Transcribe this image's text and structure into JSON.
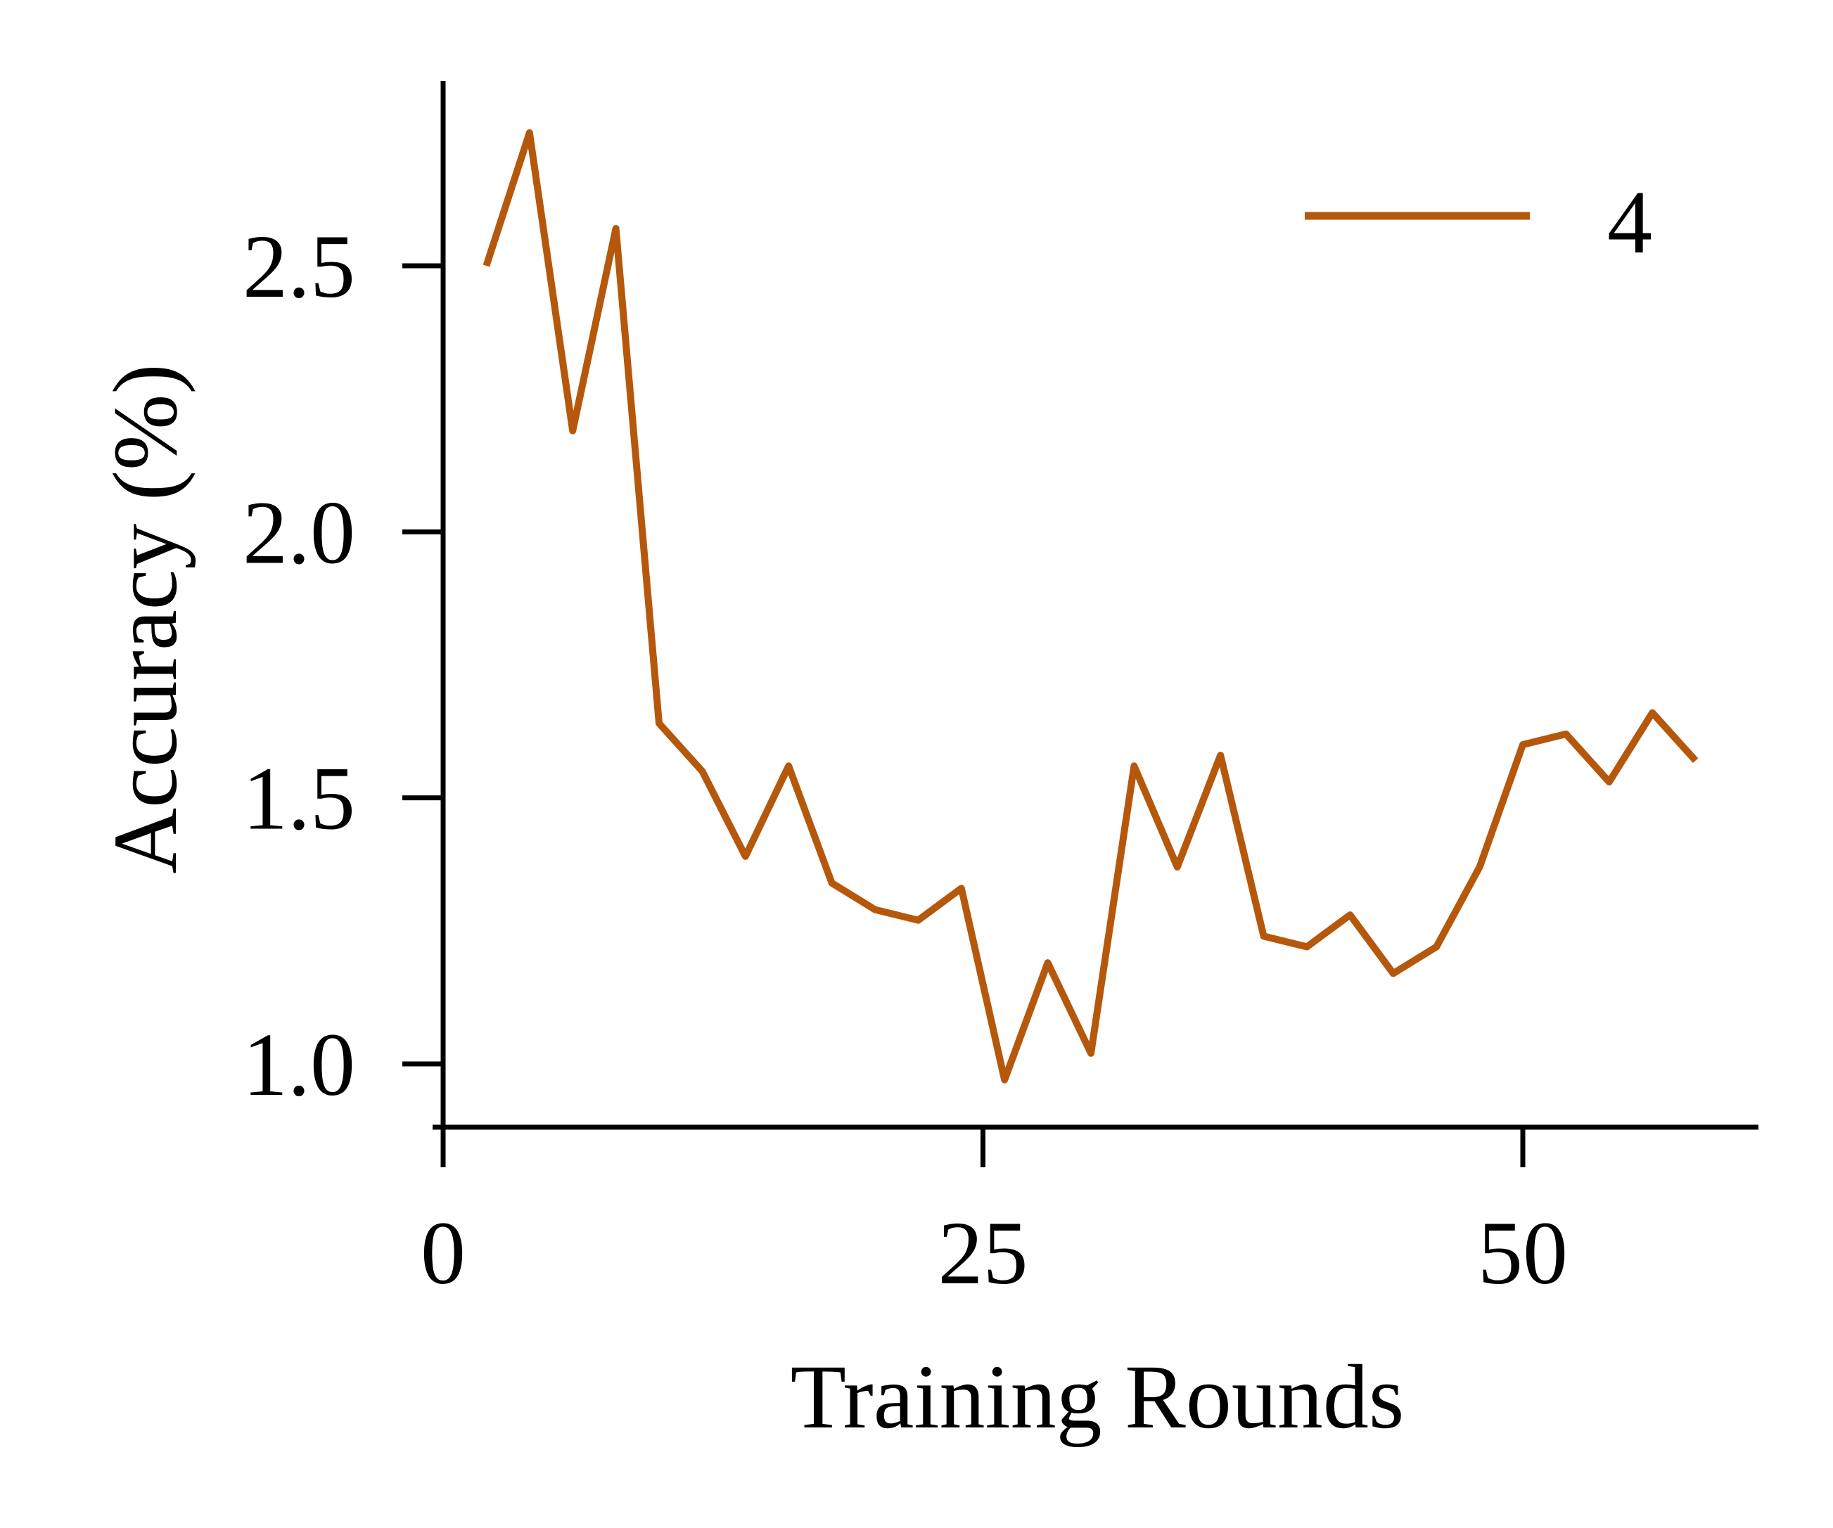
{
  "chart_data": {
    "type": "line",
    "xlabel": "Training Rounds",
    "ylabel": "Accuracy (%)",
    "xlim": [
      0,
      61
    ],
    "ylim": [
      0.88,
      2.85
    ],
    "xticks": [
      {
        "value": 0,
        "label": "0"
      },
      {
        "value": 25,
        "label": "25"
      },
      {
        "value": 50,
        "label": "50"
      }
    ],
    "yticks": [
      {
        "value": 1.0,
        "label": "1.0"
      },
      {
        "value": 1.5,
        "label": "1.5"
      },
      {
        "value": 2.0,
        "label": "2.0"
      },
      {
        "value": 2.5,
        "label": "2.5"
      }
    ],
    "grid": false,
    "legend_position": "top-right",
    "series": [
      {
        "name": "4",
        "color": "#b5580c",
        "x": [
          2,
          4,
          6,
          8,
          10,
          12,
          14,
          16,
          18,
          20,
          22,
          24,
          26,
          28,
          30,
          32,
          34,
          36,
          38,
          40,
          42,
          44,
          46,
          48,
          50,
          52,
          54,
          56,
          58
        ],
        "y": [
          2.5,
          2.75,
          2.19,
          2.57,
          1.64,
          1.55,
          1.39,
          1.56,
          1.34,
          1.29,
          1.27,
          1.33,
          0.97,
          1.19,
          1.02,
          1.56,
          1.37,
          1.58,
          1.24,
          1.22,
          1.28,
          1.17,
          1.22,
          1.37,
          1.6,
          1.62,
          1.53,
          1.66,
          1.57
        ]
      }
    ]
  }
}
